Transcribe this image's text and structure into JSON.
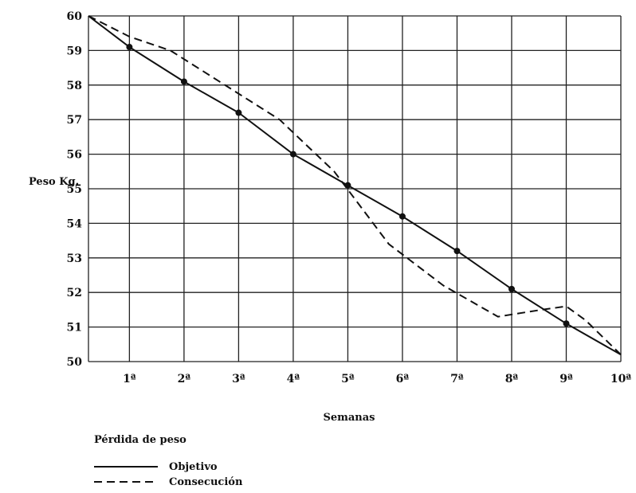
{
  "chart_data": {
    "type": "line",
    "title": "",
    "xlabel": "Semanas",
    "ylabel": "Peso Kg.",
    "ylim": [
      50,
      60
    ],
    "yticks": [
      50,
      51,
      52,
      53,
      54,
      55,
      56,
      57,
      58,
      59,
      60
    ],
    "x_tick_labels": [
      "1ª",
      "2ª",
      "3ª",
      "4ª",
      "5ª",
      "6ª",
      "7ª",
      "8ª",
      "9ª",
      "10ª"
    ],
    "grid": true,
    "legend_title": "Pérdida de peso",
    "legend_position": "bottom-left",
    "series": [
      {
        "name": "Objetivo",
        "style": "solid",
        "color": "#111111",
        "x": [
          0,
          0.75,
          1.75,
          2.75,
          3.75,
          4.75,
          5.75,
          6.75,
          7.75,
          8.75,
          9.75
        ],
        "y": [
          60,
          59.1,
          58.1,
          57.2,
          56.0,
          55.1,
          54.2,
          53.2,
          52.1,
          51.1,
          50.2
        ],
        "markers": [
          1,
          2,
          3,
          4,
          5,
          6,
          7,
          8,
          9
        ]
      },
      {
        "name": "Consecución",
        "style": "dashed",
        "color": "#111111",
        "x": [
          0,
          0.75,
          1.5,
          2.5,
          3.5,
          4.5,
          5.5,
          6.5,
          7.5,
          8.3,
          8.75,
          9.1,
          9.75
        ],
        "y": [
          60,
          59.4,
          59.0,
          58.0,
          57.0,
          55.5,
          53.4,
          52.2,
          51.3,
          51.5,
          51.6,
          51.2,
          50.2
        ],
        "markers": []
      }
    ]
  }
}
